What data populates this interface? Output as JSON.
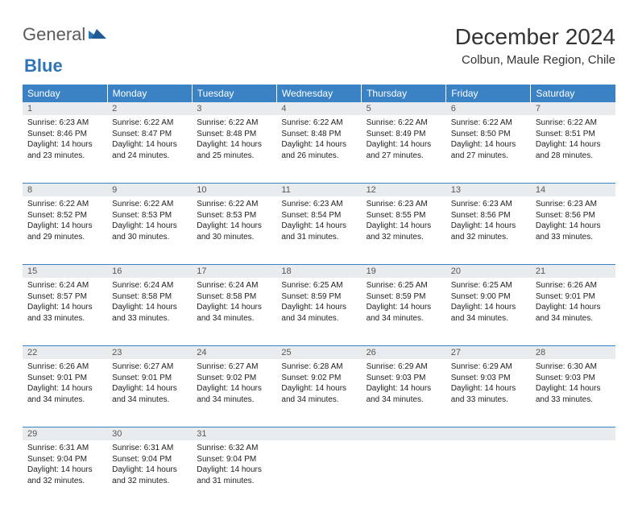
{
  "brand": {
    "word1": "General",
    "word2": "Blue"
  },
  "title": "December 2024",
  "location": "Colbun, Maule Region, Chile",
  "colors": {
    "header_bg": "#3b82c4",
    "header_text": "#ffffff",
    "daynum_bg": "#e9ecef",
    "border": "#3b82c4",
    "brand_gray": "#5a5a5a",
    "brand_blue": "#2f74b5"
  },
  "weekdays": [
    "Sunday",
    "Monday",
    "Tuesday",
    "Wednesday",
    "Thursday",
    "Friday",
    "Saturday"
  ],
  "weeks": [
    [
      {
        "n": "1",
        "sr": "6:23 AM",
        "ss": "8:46 PM",
        "dl": "14 hours and 23 minutes."
      },
      {
        "n": "2",
        "sr": "6:22 AM",
        "ss": "8:47 PM",
        "dl": "14 hours and 24 minutes."
      },
      {
        "n": "3",
        "sr": "6:22 AM",
        "ss": "8:48 PM",
        "dl": "14 hours and 25 minutes."
      },
      {
        "n": "4",
        "sr": "6:22 AM",
        "ss": "8:48 PM",
        "dl": "14 hours and 26 minutes."
      },
      {
        "n": "5",
        "sr": "6:22 AM",
        "ss": "8:49 PM",
        "dl": "14 hours and 27 minutes."
      },
      {
        "n": "6",
        "sr": "6:22 AM",
        "ss": "8:50 PM",
        "dl": "14 hours and 27 minutes."
      },
      {
        "n": "7",
        "sr": "6:22 AM",
        "ss": "8:51 PM",
        "dl": "14 hours and 28 minutes."
      }
    ],
    [
      {
        "n": "8",
        "sr": "6:22 AM",
        "ss": "8:52 PM",
        "dl": "14 hours and 29 minutes."
      },
      {
        "n": "9",
        "sr": "6:22 AM",
        "ss": "8:53 PM",
        "dl": "14 hours and 30 minutes."
      },
      {
        "n": "10",
        "sr": "6:22 AM",
        "ss": "8:53 PM",
        "dl": "14 hours and 30 minutes."
      },
      {
        "n": "11",
        "sr": "6:23 AM",
        "ss": "8:54 PM",
        "dl": "14 hours and 31 minutes."
      },
      {
        "n": "12",
        "sr": "6:23 AM",
        "ss": "8:55 PM",
        "dl": "14 hours and 32 minutes."
      },
      {
        "n": "13",
        "sr": "6:23 AM",
        "ss": "8:56 PM",
        "dl": "14 hours and 32 minutes."
      },
      {
        "n": "14",
        "sr": "6:23 AM",
        "ss": "8:56 PM",
        "dl": "14 hours and 33 minutes."
      }
    ],
    [
      {
        "n": "15",
        "sr": "6:24 AM",
        "ss": "8:57 PM",
        "dl": "14 hours and 33 minutes."
      },
      {
        "n": "16",
        "sr": "6:24 AM",
        "ss": "8:58 PM",
        "dl": "14 hours and 33 minutes."
      },
      {
        "n": "17",
        "sr": "6:24 AM",
        "ss": "8:58 PM",
        "dl": "14 hours and 34 minutes."
      },
      {
        "n": "18",
        "sr": "6:25 AM",
        "ss": "8:59 PM",
        "dl": "14 hours and 34 minutes."
      },
      {
        "n": "19",
        "sr": "6:25 AM",
        "ss": "8:59 PM",
        "dl": "14 hours and 34 minutes."
      },
      {
        "n": "20",
        "sr": "6:25 AM",
        "ss": "9:00 PM",
        "dl": "14 hours and 34 minutes."
      },
      {
        "n": "21",
        "sr": "6:26 AM",
        "ss": "9:01 PM",
        "dl": "14 hours and 34 minutes."
      }
    ],
    [
      {
        "n": "22",
        "sr": "6:26 AM",
        "ss": "9:01 PM",
        "dl": "14 hours and 34 minutes."
      },
      {
        "n": "23",
        "sr": "6:27 AM",
        "ss": "9:01 PM",
        "dl": "14 hours and 34 minutes."
      },
      {
        "n": "24",
        "sr": "6:27 AM",
        "ss": "9:02 PM",
        "dl": "14 hours and 34 minutes."
      },
      {
        "n": "25",
        "sr": "6:28 AM",
        "ss": "9:02 PM",
        "dl": "14 hours and 34 minutes."
      },
      {
        "n": "26",
        "sr": "6:29 AM",
        "ss": "9:03 PM",
        "dl": "14 hours and 34 minutes."
      },
      {
        "n": "27",
        "sr": "6:29 AM",
        "ss": "9:03 PM",
        "dl": "14 hours and 33 minutes."
      },
      {
        "n": "28",
        "sr": "6:30 AM",
        "ss": "9:03 PM",
        "dl": "14 hours and 33 minutes."
      }
    ],
    [
      {
        "n": "29",
        "sr": "6:31 AM",
        "ss": "9:04 PM",
        "dl": "14 hours and 32 minutes."
      },
      {
        "n": "30",
        "sr": "6:31 AM",
        "ss": "9:04 PM",
        "dl": "14 hours and 32 minutes."
      },
      {
        "n": "31",
        "sr": "6:32 AM",
        "ss": "9:04 PM",
        "dl": "14 hours and 31 minutes."
      },
      null,
      null,
      null,
      null
    ]
  ],
  "labels": {
    "sunrise": "Sunrise:",
    "sunset": "Sunset:",
    "daylight": "Daylight:"
  }
}
